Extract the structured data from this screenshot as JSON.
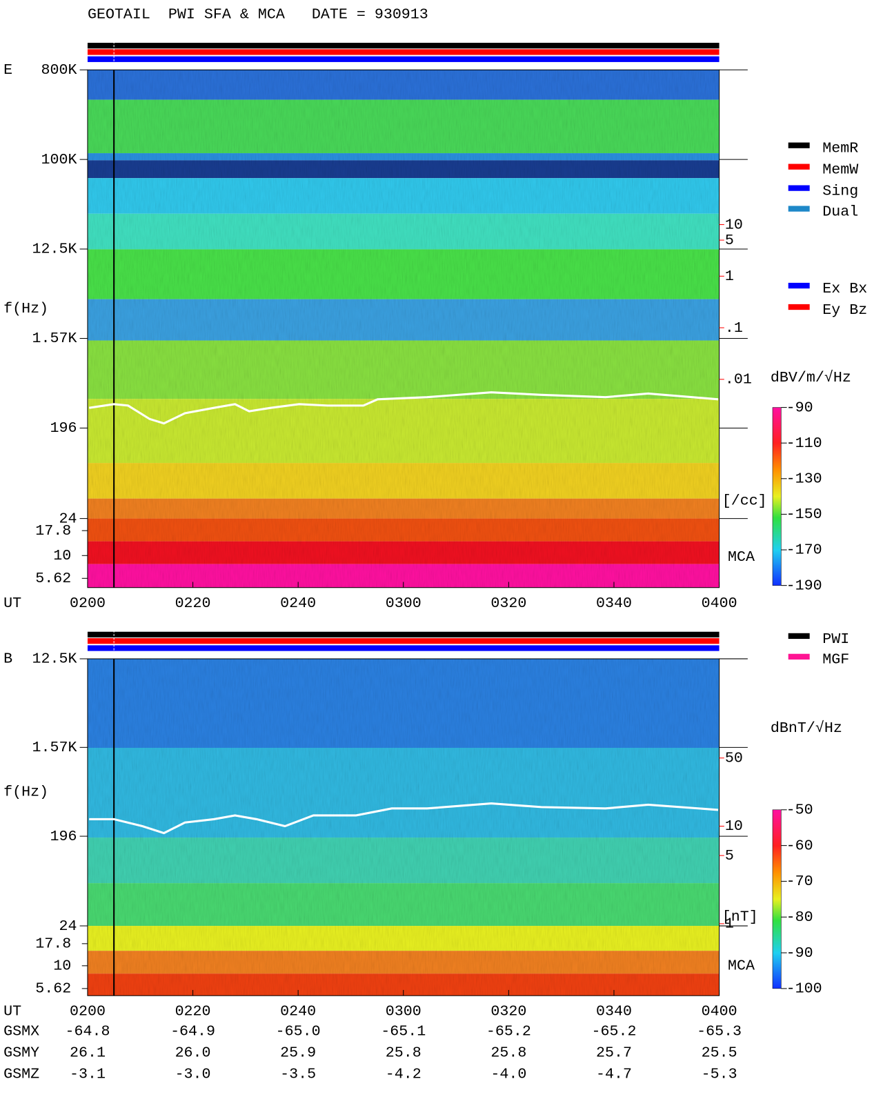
{
  "title": "GEOTAIL  PWI SFA & MCA   DATE = 930913",
  "chart_data": [
    {
      "type": "spectrogram",
      "panel_label": "E",
      "y_label": "f(Hz)",
      "x_label": "UT",
      "log_y": true,
      "ylim": [
        24,
        800000
      ],
      "yticks": [
        {
          "value": 800000,
          "label": "800K"
        },
        {
          "value": 100000,
          "label": "100K"
        },
        {
          "value": 12500,
          "label": "12.5K"
        },
        {
          "value": 1570,
          "label": "1.57K"
        },
        196,
        24
      ],
      "mca_ticks": [
        17.8,
        10,
        5.62
      ],
      "mca_label": "MCA",
      "xlim": [
        120,
        240
      ],
      "xticks": [
        {
          "value": 120,
          "label": "0200"
        },
        {
          "value": 140,
          "label": "0220"
        },
        {
          "value": 160,
          "label": "0240"
        },
        {
          "value": 180,
          "label": "0300"
        },
        {
          "value": 200,
          "label": "0320"
        },
        {
          "value": 220,
          "label": "0340"
        },
        {
          "value": 240,
          "label": "0400"
        }
      ],
      "colorbar": {
        "label": "dBV/m/√Hz",
        "lim": [
          -190,
          -90
        ],
        "ticks": [
          -90,
          -110,
          -130,
          -150,
          -170,
          -190
        ]
      },
      "density_axis": {
        "label": "[/cc]",
        "color": "#ff0000",
        "lim": [
          2e-05,
          10000
        ],
        "ticks": [
          10,
          5,
          1,
          {
            "value": 0.1,
            "label": ".1"
          },
          {
            "value": 0.01,
            "label": ".01"
          }
        ]
      },
      "series": [
        {
          "color": "#ffffff",
          "x": [
            120.3,
            125.0,
            127.7,
            131.8,
            134.5,
            138.5,
            144.0,
            148.0,
            150.7,
            154.8,
            160.2,
            165.6,
            172.4,
            175.1,
            184.5,
            196.7,
            206.2,
            218.4,
            226.5,
            239.8
          ],
          "values": [
            0.0028,
            0.0033,
            0.0031,
            0.0017,
            0.0014,
            0.0022,
            0.0028,
            0.0033,
            0.0024,
            0.0028,
            0.0033,
            0.0031,
            0.0031,
            0.0041,
            0.0045,
            0.0056,
            0.005,
            0.0045,
            0.0053,
            0.0041
          ]
        }
      ],
      "legends": [
        [
          {
            "name": "MemR",
            "color": "#000000"
          },
          {
            "name": "MemW",
            "color": "#ff0000"
          },
          {
            "name": "Sing",
            "color": "#0000ff"
          },
          {
            "name": "Dual",
            "color": "#1e88c8"
          }
        ],
        [
          {
            "name": "Ex Bx",
            "color": "#0000ff"
          },
          {
            "name": "Ey Bz",
            "color": "#ff0000"
          }
        ]
      ]
    },
    {
      "type": "spectrogram",
      "panel_label": "B",
      "y_label": "f(Hz)",
      "x_label": "UT",
      "log_y": true,
      "ylim": [
        24,
        12500
      ],
      "yticks": [
        {
          "value": 12500,
          "label": "12.5K"
        },
        {
          "value": 1570,
          "label": "1.57K"
        },
        196,
        24
      ],
      "mca_ticks": [
        17.8,
        10,
        5.62
      ],
      "mca_label": "MCA",
      "xlim": [
        120,
        240
      ],
      "xticks": [
        {
          "value": 120,
          "label": "0200"
        },
        {
          "value": 140,
          "label": "0220"
        },
        {
          "value": 160,
          "label": "0240"
        },
        {
          "value": 180,
          "label": "0300"
        },
        {
          "value": 200,
          "label": "0320"
        },
        {
          "value": 220,
          "label": "0340"
        },
        {
          "value": 240,
          "label": "0400"
        }
      ],
      "colorbar": {
        "label": "dBnT/√Hz",
        "lim": [
          -100,
          -50
        ],
        "ticks": [
          -50,
          -60,
          -70,
          -80,
          -90,
          -100
        ]
      },
      "density_axis": {
        "label": "[nT]",
        "color": "#ff0000",
        "lim": [
          0.95,
          520
        ],
        "ticks": [
          50,
          10,
          5,
          1
        ]
      },
      "series": [
        {
          "color": "#ffffff",
          "x": [
            120.3,
            125.0,
            130.4,
            134.5,
            138.5,
            144.0,
            148.0,
            152.1,
            157.5,
            162.9,
            171.0,
            177.8,
            184.5,
            196.7,
            206.2,
            218.4,
            226.5,
            239.8
          ],
          "values": [
            11.8,
            11.8,
            10,
            8.5,
            10.9,
            11.8,
            12.9,
            11.8,
            10,
            12.9,
            12.9,
            15.2,
            15.2,
            17.1,
            15.7,
            15.2,
            16.6,
            14.7
          ]
        }
      ],
      "legends": [
        [
          {
            "name": "PWI",
            "color": "#000000"
          },
          {
            "name": "MGF",
            "color": "#ff1493"
          }
        ]
      ]
    }
  ],
  "orbit": {
    "rows": [
      {
        "label": "GSMX",
        "values": [
          "-64.8",
          "-64.9",
          "-65.0",
          "-65.1",
          "-65.2",
          "-65.2",
          "-65.3"
        ]
      },
      {
        "label": "GSMY",
        "values": [
          "26.1",
          "26.0",
          "25.9",
          "25.8",
          "25.8",
          "25.7",
          "25.5"
        ]
      },
      {
        "label": "GSMZ",
        "values": [
          "-3.1",
          "-3.0",
          "-3.5",
          "-4.2",
          "-4.0",
          "-4.7",
          "-5.3"
        ]
      }
    ]
  }
}
